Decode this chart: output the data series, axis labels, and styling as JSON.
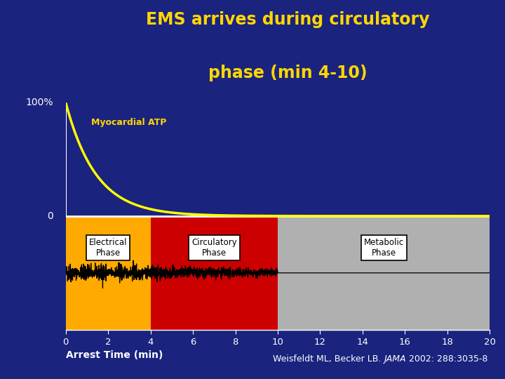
{
  "title_line1": "EMS arrives during circulatory",
  "title_line2": "phase (min 4-10)",
  "title_color": "#FFD700",
  "background_color": "#1a237e",
  "ylabel_100": "100%",
  "ylabel_0": "0",
  "atp_label": "Myocardial ATP",
  "atp_label_color": "#FFD700",
  "xlabel": "Arrest Time (min)",
  "x_ticks": [
    0,
    2,
    4,
    6,
    8,
    10,
    12,
    14,
    16,
    18,
    20
  ],
  "phases": [
    {
      "label": "Electrical\nPhase",
      "xstart": 0,
      "xend": 4,
      "color": "#FFAA00"
    },
    {
      "label": "Circulatory\nPhase",
      "xstart": 4,
      "xend": 10,
      "color": "#CC0000"
    },
    {
      "label": "Metabolic\nPhase",
      "xstart": 10,
      "xend": 20,
      "color": "#B0B0B0"
    }
  ],
  "atp_decay_rate": 0.7,
  "ecg_amplitude_electrical": 0.032,
  "ecg_amplitude_circulatory": 0.018,
  "ecg_flat_value": 0.0,
  "white_line_color": "#FFFFFF",
  "ecg_color": "#000000",
  "box_facecolor": "#FFFFFF",
  "box_edgecolor": "#000000"
}
